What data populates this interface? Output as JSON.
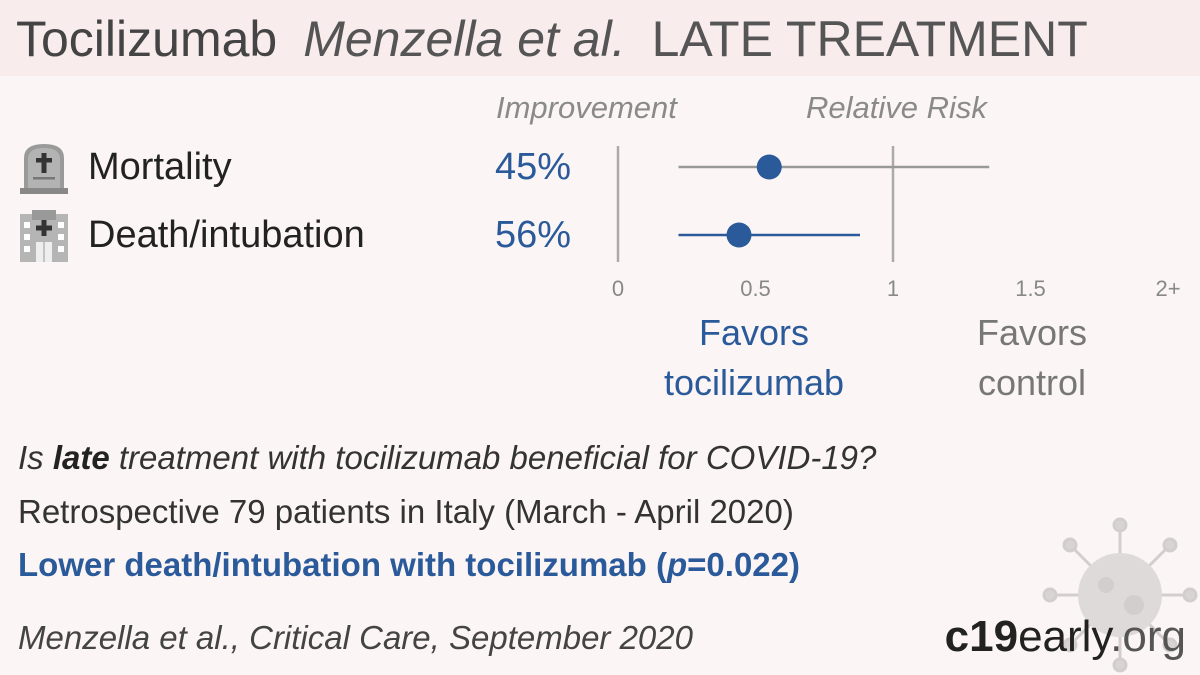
{
  "header": {
    "drug": "Tocilizumab",
    "authors": "Menzella et al.",
    "stage": "LATE TREATMENT"
  },
  "columns": {
    "improvement": "Improvement",
    "relative_risk": "Relative Risk"
  },
  "rows": [
    {
      "icon": "tombstone-icon",
      "label": "Mortality",
      "improvement": "45%"
    },
    {
      "icon": "hospital-icon",
      "label": "Death/intubation",
      "improvement": "56%"
    }
  ],
  "favors": {
    "left_line1": "Favors",
    "left_line2": "tocilizumab",
    "right_line1": "Favors",
    "right_line2": "control"
  },
  "summary": {
    "question_prefix": "Is ",
    "question_bold": "late",
    "question_suffix": " treatment with tocilizumab beneficial for COVID-19?",
    "design": "Retrospective 79 patients in Italy (March - April 2020)",
    "result_prefix": "Lower death/intubation with tocilizumab (",
    "result_p": "p",
    "result_suffix": "=0.022)",
    "citation": "Menzella et al., Critical Care, September 2020"
  },
  "brand": {
    "bold": "c19",
    "regular": "early",
    "light": ".org"
  },
  "colors": {
    "accent": "#2a5a9a",
    "ci_mortality": "#999999",
    "ci_primary": "#2a5a9a",
    "header_bg": "#f8ecec",
    "background": "#fcf5f5"
  },
  "chart_data": {
    "type": "forest",
    "title": "",
    "xlabel": "Relative Risk",
    "xlim": [
      0,
      2
    ],
    "ticks": [
      {
        "value": 0,
        "label": "0"
      },
      {
        "value": 0.5,
        "label": "0.5"
      },
      {
        "value": 1,
        "label": "1"
      },
      {
        "value": 1.5,
        "label": "1.5"
      },
      {
        "value": 2,
        "label": "2+"
      }
    ],
    "reference_line": 1,
    "series": [
      {
        "name": "Mortality",
        "rr": 0.55,
        "ci_low": 0.22,
        "ci_high": 1.35
      },
      {
        "name": "Death/intubation",
        "rr": 0.44,
        "ci_low": 0.22,
        "ci_high": 0.88
      }
    ]
  }
}
